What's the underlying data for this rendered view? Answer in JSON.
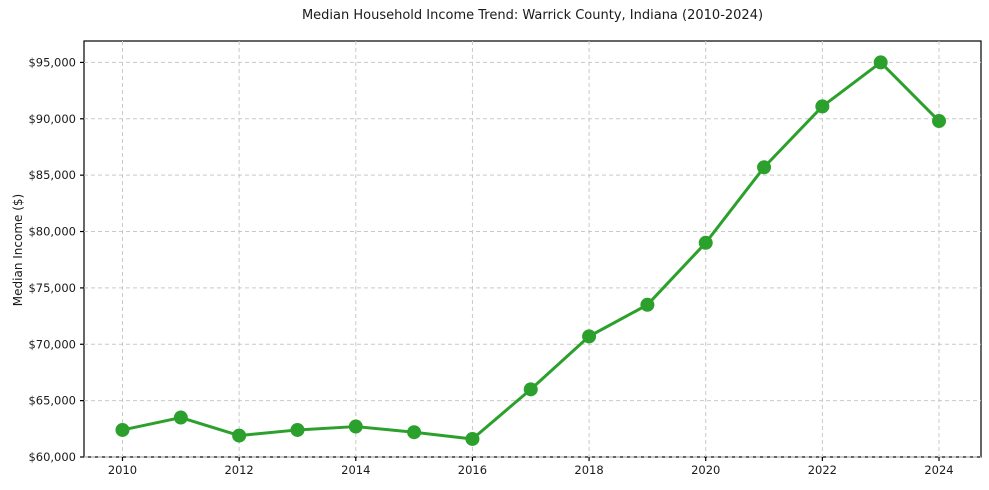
{
  "chart_data": {
    "type": "line",
    "title": "Median Household Income Trend: Warrick County, Indiana (2010-2024)",
    "xlabel": "",
    "ylabel": "Median Income ($)",
    "series": [
      {
        "name": "Median Household Income",
        "x": [
          2010,
          2011,
          2012,
          2013,
          2014,
          2015,
          2016,
          2017,
          2018,
          2019,
          2020,
          2021,
          2022,
          2023,
          2024
        ],
        "values": [
          62400,
          63500,
          61900,
          62400,
          62700,
          62200,
          61600,
          66000,
          70700,
          73500,
          79000,
          85700,
          91100,
          95000,
          89800
        ]
      }
    ],
    "xticks": [
      2010,
      2012,
      2014,
      2016,
      2018,
      2020,
      2022,
      2024
    ],
    "xtick_labels": [
      "2010",
      "2012",
      "2014",
      "2016",
      "2018",
      "2020",
      "2022",
      "2024"
    ],
    "yticks": [
      60000,
      65000,
      70000,
      75000,
      80000,
      85000,
      90000,
      95000
    ],
    "ytick_labels": [
      "$60,000",
      "$65,000",
      "$70,000",
      "$75,000",
      "$80,000",
      "$85,000",
      "$90,000",
      "$95,000"
    ],
    "xlim": [
      2009.34,
      2024.72
    ],
    "ylim": [
      60000,
      96900
    ],
    "grid": true,
    "grid_style": "dashed",
    "legend_position": "none",
    "line_color": "#2ca02c",
    "marker": "circle",
    "marker_radius": 7,
    "line_width": 3,
    "grid_color": "#c9c9c9",
    "spine_color": "#000000",
    "background_color": "#ffffff"
  }
}
